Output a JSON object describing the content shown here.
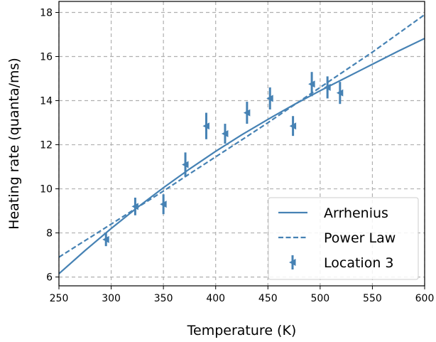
{
  "chart_data": {
    "type": "line",
    "xlabel": "Temperature (K)",
    "ylabel": "Heating rate (quanta/ms)",
    "xlim": [
      250,
      600
    ],
    "ylim": [
      5.6,
      18.5
    ],
    "xticks": [
      250,
      300,
      350,
      400,
      450,
      500,
      550,
      600
    ],
    "yticks": [
      6,
      8,
      10,
      12,
      14,
      16,
      18
    ],
    "grid": true,
    "legend_position": "bottom-right",
    "color": "#4682b4",
    "series": [
      {
        "name": "Arrhenius",
        "style": "solid",
        "x": [
          250,
          275,
          300,
          325,
          350,
          375,
          400,
          425,
          450,
          475,
          500,
          525,
          550,
          575,
          600
        ],
        "y": [
          6.15,
          7.2,
          8.2,
          9.15,
          10.05,
          10.9,
          11.7,
          12.45,
          13.15,
          13.82,
          14.45,
          15.05,
          15.65,
          16.25,
          16.82
        ]
      },
      {
        "name": "Power Law",
        "style": "dashed",
        "x": [
          250,
          275,
          300,
          325,
          350,
          375,
          400,
          425,
          450,
          475,
          500,
          525,
          550,
          575,
          600
        ],
        "y": [
          6.9,
          7.65,
          8.4,
          9.15,
          9.9,
          10.68,
          11.45,
          12.22,
          13.0,
          13.8,
          14.6,
          15.4,
          16.2,
          17.05,
          17.9
        ]
      },
      {
        "name": "Location 3",
        "style": "errorbar",
        "x": [
          295,
          323,
          350,
          371,
          391,
          409,
          430,
          452,
          474,
          492,
          507,
          519
        ],
        "y": [
          7.7,
          9.2,
          9.3,
          11.1,
          12.85,
          12.5,
          13.45,
          14.1,
          12.85,
          14.75,
          14.6,
          14.35
        ],
        "yerr": [
          0.3,
          0.4,
          0.45,
          0.55,
          0.6,
          0.45,
          0.5,
          0.5,
          0.45,
          0.55,
          0.5,
          0.5
        ],
        "xerr": [
          1.5,
          1.5,
          1.5,
          1.5,
          1.5,
          1.5,
          1.5,
          1.5,
          1.5,
          1.5,
          1.5,
          1.5
        ]
      }
    ]
  }
}
